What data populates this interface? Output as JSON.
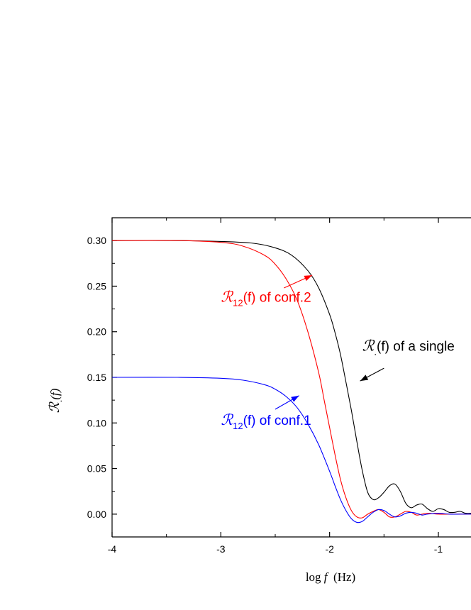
{
  "chart_data": {
    "type": "line",
    "title": "",
    "xlabel": {
      "prefix": "log ",
      "variable": "f",
      "suffix": "  (Hz)"
    },
    "ylabel": {
      "symbol": "ℛ",
      "subscript": ".",
      "arg": "(f)"
    },
    "xlim": [
      -4,
      -0.7
    ],
    "ylim": [
      -0.025,
      0.325
    ],
    "xticks": [
      -4,
      -3,
      -2,
      -1
    ],
    "xtick_labels": [
      "-4",
      "-3",
      "-2",
      "-1"
    ],
    "yticks": [
      0.0,
      0.05,
      0.1,
      0.15,
      0.2,
      0.25,
      0.3
    ],
    "ytick_labels": [
      "0.00",
      "0.05",
      "0.10",
      "0.15",
      "0.20",
      "0.25",
      "0.30"
    ],
    "grid": false,
    "series": [
      {
        "color": "#000000",
        "x": [
          -4.0,
          -3.4,
          -3.0,
          -2.7,
          -2.5,
          -2.35,
          -2.2,
          -2.1,
          -2.0,
          -1.95,
          -1.9,
          -1.85,
          -1.8,
          -1.75,
          -1.7,
          -1.65,
          -1.6,
          -1.55,
          -1.5,
          -1.45,
          -1.4,
          -1.35,
          -1.3,
          -1.25,
          -1.2,
          -1.15,
          -1.1,
          -1.05,
          -1.0,
          -0.95,
          -0.9,
          -0.85,
          -0.8,
          -0.75,
          -0.7
        ],
        "y": [
          0.3,
          0.3,
          0.299,
          0.297,
          0.292,
          0.284,
          0.267,
          0.248,
          0.219,
          0.199,
          0.175,
          0.145,
          0.114,
          0.08,
          0.048,
          0.024,
          0.016,
          0.018,
          0.024,
          0.031,
          0.033,
          0.025,
          0.012,
          0.007,
          0.01,
          0.011,
          0.006,
          0.003,
          0.006,
          0.005,
          0.002,
          0.002,
          0.003,
          0.001,
          0.001
        ]
      },
      {
        "color": "#ff0000",
        "x": [
          -4.0,
          -3.4,
          -3.0,
          -2.8,
          -2.6,
          -2.5,
          -2.4,
          -2.3,
          -2.2,
          -2.1,
          -2.05,
          -2.0,
          -1.95,
          -1.9,
          -1.85,
          -1.8,
          -1.75,
          -1.7,
          -1.65,
          -1.6,
          -1.55,
          -1.5,
          -1.45,
          -1.4,
          -1.35,
          -1.3,
          -1.25,
          -1.2,
          -1.15,
          -1.1,
          -1.0,
          -0.9,
          -0.8,
          -0.7
        ],
        "y": [
          0.3,
          0.3,
          0.298,
          0.294,
          0.284,
          0.274,
          0.258,
          0.235,
          0.2,
          0.155,
          0.125,
          0.095,
          0.065,
          0.038,
          0.018,
          0.004,
          -0.003,
          -0.004,
          0.0,
          0.003,
          0.005,
          0.002,
          -0.003,
          -0.003,
          0.0,
          0.003,
          0.002,
          -0.001,
          0.0,
          0.001,
          0.0,
          0.0,
          0.0,
          0.0
        ]
      },
      {
        "color": "#0000ff",
        "x": [
          -4.0,
          -3.4,
          -3.0,
          -2.8,
          -2.6,
          -2.5,
          -2.4,
          -2.3,
          -2.2,
          -2.1,
          -2.0,
          -1.95,
          -1.9,
          -1.85,
          -1.8,
          -1.75,
          -1.7,
          -1.65,
          -1.6,
          -1.55,
          -1.5,
          -1.45,
          -1.4,
          -1.35,
          -1.3,
          -1.25,
          -1.2,
          -1.15,
          -1.1,
          -1.0,
          -0.9,
          -0.8,
          -0.7
        ],
        "y": [
          0.15,
          0.15,
          0.149,
          0.147,
          0.142,
          0.137,
          0.129,
          0.117,
          0.099,
          0.076,
          0.047,
          0.031,
          0.016,
          0.004,
          -0.005,
          -0.009,
          -0.008,
          -0.003,
          0.002,
          0.005,
          0.004,
          0.0,
          -0.003,
          -0.002,
          0.001,
          0.002,
          0.001,
          -0.001,
          0.0,
          0.001,
          0.0,
          0.0,
          0.0
        ]
      }
    ],
    "annotations": [
      {
        "color": "#ff0000",
        "symbol": "ℛ",
        "subscript": "12",
        "text": "(f) of conf.2",
        "label_anchor": [
          -3.0,
          0.233
        ],
        "arrow_from": [
          -2.42,
          0.248
        ],
        "arrow_to": [
          -2.16,
          0.262
        ]
      },
      {
        "color": "#0000ff",
        "symbol": "ℛ",
        "subscript": "12",
        "text": "(f) of conf.1",
        "label_anchor": [
          -3.0,
          0.098
        ],
        "arrow_from": [
          -2.5,
          0.115
        ],
        "arrow_to": [
          -2.28,
          0.13
        ]
      },
      {
        "color": "#000000",
        "symbol": "ℛ",
        "subscript": ".",
        "text": "(f) of a single",
        "label_anchor": [
          -1.7,
          0.179
        ],
        "arrow_from": [
          -1.5,
          0.16
        ],
        "arrow_to": [
          -1.72,
          0.146
        ]
      }
    ]
  }
}
